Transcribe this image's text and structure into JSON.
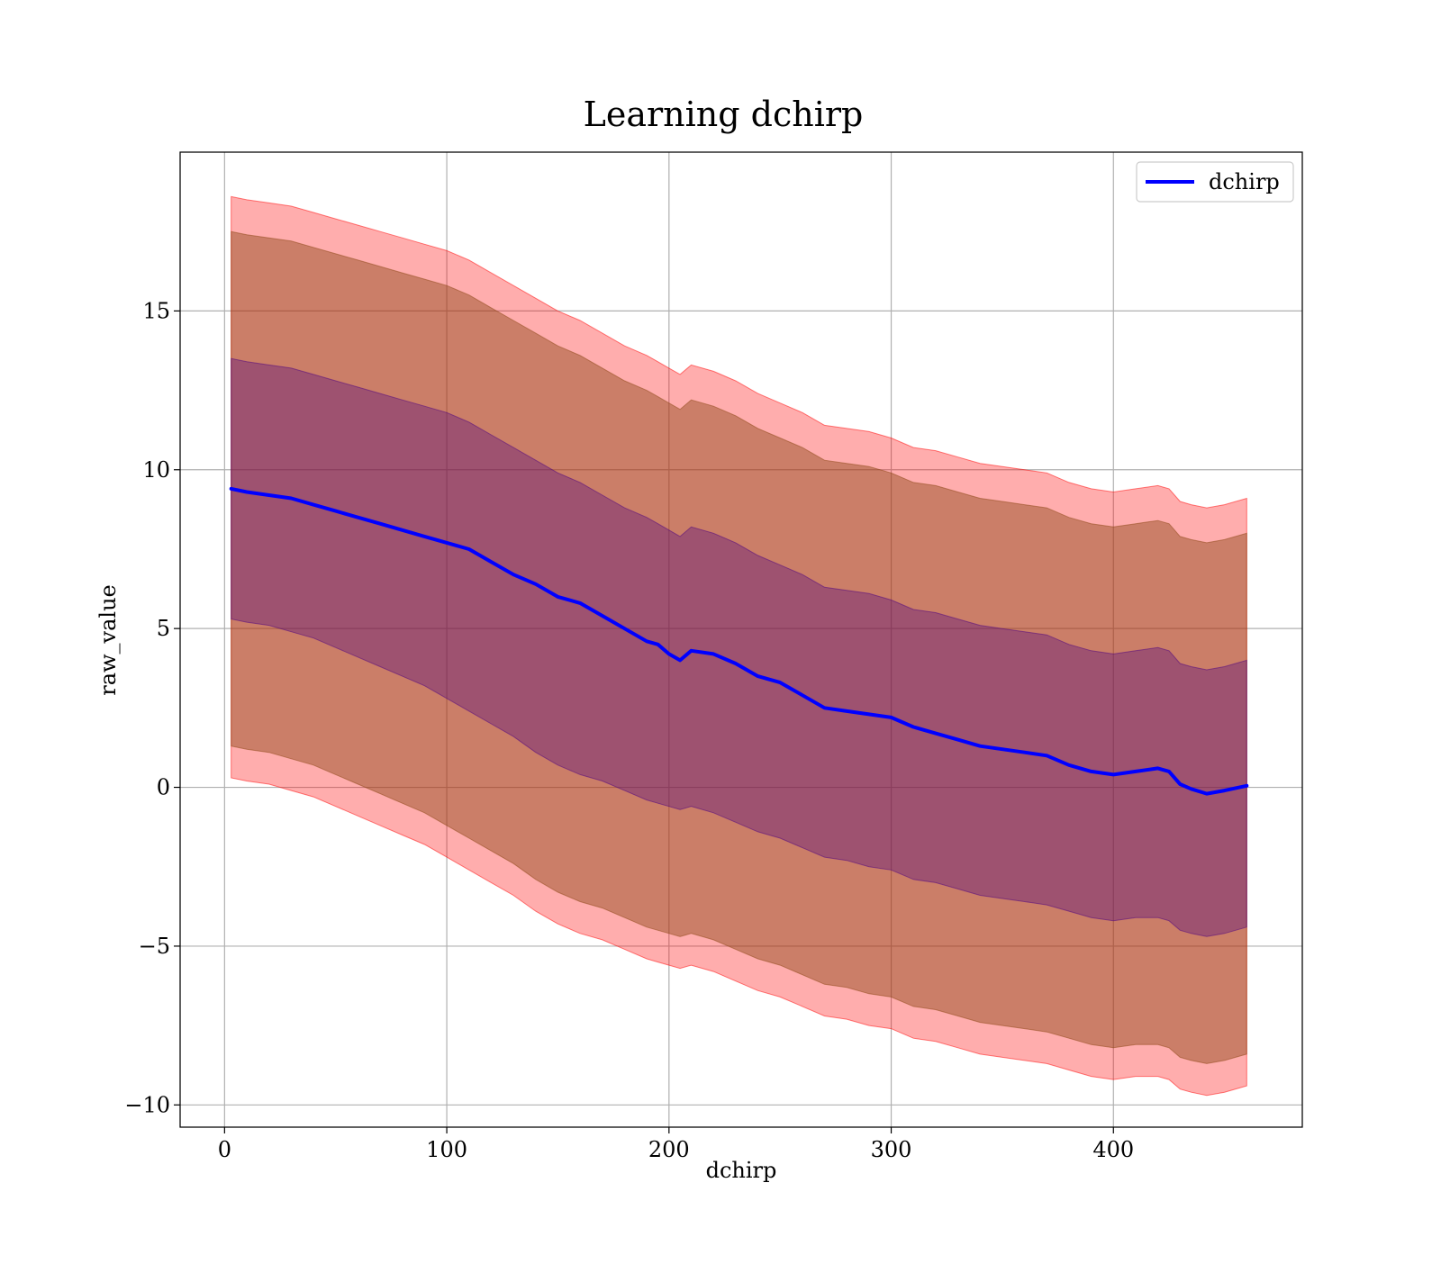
{
  "chart_data": {
    "type": "line",
    "title": "Learning dchirp",
    "xlabel": "dchirp",
    "ylabel": "raw_value",
    "xlim": [
      -20,
      485
    ],
    "ylim": [
      -10.7,
      20
    ],
    "xticks": [
      0,
      100,
      200,
      300,
      400
    ],
    "yticks": [
      -10,
      -5,
      0,
      5,
      10,
      15
    ],
    "xtick_labels": [
      "0",
      "100",
      "200",
      "300",
      "400"
    ],
    "ytick_labels": [
      "−10",
      "−5",
      "0",
      "5",
      "10",
      "15"
    ],
    "grid": true,
    "legend": {
      "placement": "top-right",
      "entries": [
        "dchirp"
      ]
    },
    "colors": {
      "line": "#0000ff",
      "band_outer": "#ff0000",
      "band_middle": "#8b4513",
      "band_inner": "#4b0082",
      "grid": "#b0b0b0",
      "axes": "#000000"
    },
    "series": [
      {
        "name": "dchirp",
        "x": [
          3,
          10,
          20,
          30,
          40,
          50,
          60,
          70,
          80,
          90,
          100,
          110,
          120,
          130,
          140,
          150,
          160,
          170,
          180,
          190,
          195,
          200,
          205,
          210,
          220,
          230,
          240,
          250,
          260,
          270,
          280,
          290,
          300,
          310,
          320,
          330,
          340,
          350,
          360,
          370,
          380,
          390,
          400,
          410,
          420,
          425,
          430,
          435,
          442,
          450,
          460
        ],
        "y": [
          9.4,
          9.3,
          9.2,
          9.1,
          8.9,
          8.7,
          8.5,
          8.3,
          8.1,
          7.9,
          7.7,
          7.5,
          7.1,
          6.7,
          6.4,
          6.0,
          5.8,
          5.4,
          5.0,
          4.6,
          4.5,
          4.2,
          4.0,
          4.3,
          4.2,
          3.9,
          3.5,
          3.3,
          2.9,
          2.5,
          2.4,
          2.3,
          2.2,
          1.9,
          1.7,
          1.5,
          1.3,
          1.2,
          1.1,
          1.0,
          0.7,
          0.5,
          0.4,
          0.5,
          0.6,
          0.5,
          0.1,
          -0.05,
          -0.2,
          -0.1,
          0.05
        ]
      }
    ],
    "bands": [
      {
        "role": "outer",
        "lower": [
          0.3,
          0.2,
          0.1,
          -0.1,
          -0.3,
          -0.6,
          -0.9,
          -1.2,
          -1.5,
          -1.8,
          -2.2,
          -2.6,
          -3.0,
          -3.4,
          -3.9,
          -4.3,
          -4.6,
          -4.8,
          -5.1,
          -5.4,
          -5.5,
          -5.6,
          -5.7,
          -5.6,
          -5.8,
          -6.1,
          -6.4,
          -6.6,
          -6.9,
          -7.2,
          -7.3,
          -7.5,
          -7.6,
          -7.9,
          -8.0,
          -8.2,
          -8.4,
          -8.5,
          -8.6,
          -8.7,
          -8.9,
          -9.1,
          -9.2,
          -9.1,
          -9.1,
          -9.2,
          -9.5,
          -9.6,
          -9.7,
          -9.6,
          -9.4
        ],
        "upper": [
          18.6,
          18.5,
          18.4,
          18.3,
          18.1,
          17.9,
          17.7,
          17.5,
          17.3,
          17.1,
          16.9,
          16.6,
          16.2,
          15.8,
          15.4,
          15.0,
          14.7,
          14.3,
          13.9,
          13.6,
          13.4,
          13.2,
          13.0,
          13.3,
          13.1,
          12.8,
          12.4,
          12.1,
          11.8,
          11.4,
          11.3,
          11.2,
          11.0,
          10.7,
          10.6,
          10.4,
          10.2,
          10.1,
          10.0,
          9.9,
          9.6,
          9.4,
          9.3,
          9.4,
          9.5,
          9.4,
          9.0,
          8.9,
          8.8,
          8.9,
          9.1
        ]
      },
      {
        "role": "middle",
        "lower": [
          1.3,
          1.2,
          1.1,
          0.9,
          0.7,
          0.4,
          0.1,
          -0.2,
          -0.5,
          -0.8,
          -1.2,
          -1.6,
          -2.0,
          -2.4,
          -2.9,
          -3.3,
          -3.6,
          -3.8,
          -4.1,
          -4.4,
          -4.5,
          -4.6,
          -4.7,
          -4.6,
          -4.8,
          -5.1,
          -5.4,
          -5.6,
          -5.9,
          -6.2,
          -6.3,
          -6.5,
          -6.6,
          -6.9,
          -7.0,
          -7.2,
          -7.4,
          -7.5,
          -7.6,
          -7.7,
          -7.9,
          -8.1,
          -8.2,
          -8.1,
          -8.1,
          -8.2,
          -8.5,
          -8.6,
          -8.7,
          -8.6,
          -8.4
        ],
        "upper": [
          17.5,
          17.4,
          17.3,
          17.2,
          17.0,
          16.8,
          16.6,
          16.4,
          16.2,
          16.0,
          15.8,
          15.5,
          15.1,
          14.7,
          14.3,
          13.9,
          13.6,
          13.2,
          12.8,
          12.5,
          12.3,
          12.1,
          11.9,
          12.2,
          12.0,
          11.7,
          11.3,
          11.0,
          10.7,
          10.3,
          10.2,
          10.1,
          9.9,
          9.6,
          9.5,
          9.3,
          9.1,
          9.0,
          8.9,
          8.8,
          8.5,
          8.3,
          8.2,
          8.3,
          8.4,
          8.3,
          7.9,
          7.8,
          7.7,
          7.8,
          8.0
        ]
      },
      {
        "role": "inner",
        "lower": [
          5.3,
          5.2,
          5.1,
          4.9,
          4.7,
          4.4,
          4.1,
          3.8,
          3.5,
          3.2,
          2.8,
          2.4,
          2.0,
          1.6,
          1.1,
          0.7,
          0.4,
          0.2,
          -0.1,
          -0.4,
          -0.5,
          -0.6,
          -0.7,
          -0.6,
          -0.8,
          -1.1,
          -1.4,
          -1.6,
          -1.9,
          -2.2,
          -2.3,
          -2.5,
          -2.6,
          -2.9,
          -3.0,
          -3.2,
          -3.4,
          -3.5,
          -3.6,
          -3.7,
          -3.9,
          -4.1,
          -4.2,
          -4.1,
          -4.1,
          -4.2,
          -4.5,
          -4.6,
          -4.7,
          -4.6,
          -4.4
        ],
        "upper": [
          13.5,
          13.4,
          13.3,
          13.2,
          13.0,
          12.8,
          12.6,
          12.4,
          12.2,
          12.0,
          11.8,
          11.5,
          11.1,
          10.7,
          10.3,
          9.9,
          9.6,
          9.2,
          8.8,
          8.5,
          8.3,
          8.1,
          7.9,
          8.2,
          8.0,
          7.7,
          7.3,
          7.0,
          6.7,
          6.3,
          6.2,
          6.1,
          5.9,
          5.6,
          5.5,
          5.3,
          5.1,
          5.0,
          4.9,
          4.8,
          4.5,
          4.3,
          4.2,
          4.3,
          4.4,
          4.3,
          3.9,
          3.8,
          3.7,
          3.8,
          4.0
        ]
      }
    ]
  }
}
